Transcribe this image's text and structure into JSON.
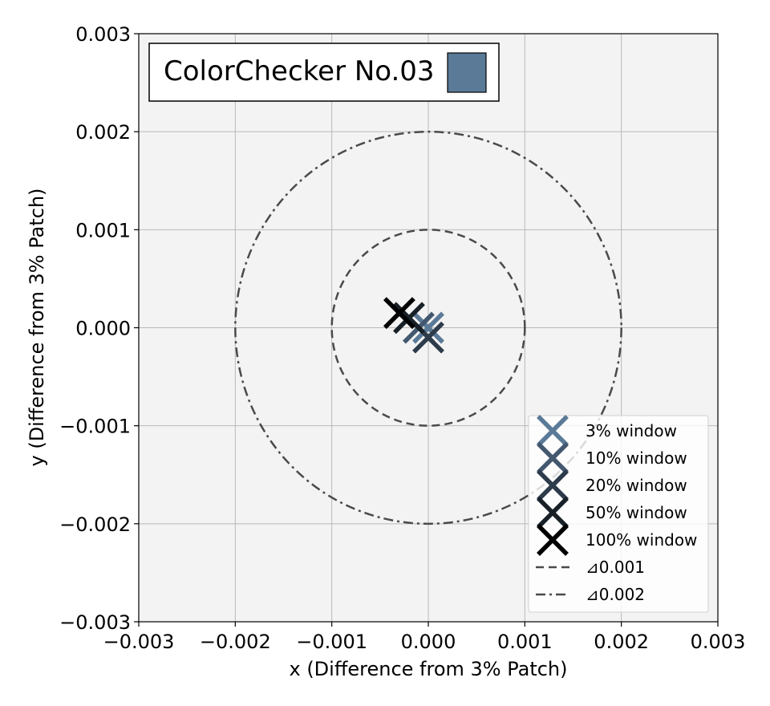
{
  "chart_data": {
    "type": "scatter",
    "title": "ColorChecker No.03",
    "title_swatch_color": "#5b7a98",
    "xlabel": "x (Difference from 3% Patch)",
    "ylabel": "y (Difference from 3% Patch)",
    "xlim": [
      -0.003,
      0.003
    ],
    "ylim": [
      -0.003,
      0.003
    ],
    "xticks": [
      -0.003,
      -0.002,
      -0.001,
      0.0,
      0.001,
      0.002,
      0.003
    ],
    "yticks": [
      -0.003,
      -0.002,
      -0.001,
      0.0,
      0.001,
      0.002,
      0.003
    ],
    "xtick_labels": [
      "−0.003",
      "−0.002",
      "−0.001",
      "0.000",
      "0.001",
      "0.002",
      "0.003"
    ],
    "ytick_labels": [
      "−0.003",
      "−0.002",
      "−0.001",
      "0.000",
      "0.001",
      "0.002",
      "0.003"
    ],
    "grid": true,
    "background": "#f3f3f3",
    "legend_position": "lower right",
    "series": [
      {
        "name": "3% window",
        "x": 0.0,
        "y": 0.0,
        "color": "#5b7a98",
        "marker": "x"
      },
      {
        "name": "10% window",
        "x": -0.0001,
        "y": 0.0,
        "color": "#43586f",
        "marker": "x"
      },
      {
        "name": "20% window",
        "x": 0.0,
        "y": -0.0001,
        "color": "#2d3b4b",
        "marker": "x"
      },
      {
        "name": "50% window",
        "x": -0.0002,
        "y": 0.0001,
        "color": "#182028",
        "marker": "x"
      },
      {
        "name": "100% window",
        "x": -0.0003,
        "y": 0.00015,
        "color": "#000000",
        "marker": "x"
      }
    ],
    "circles": [
      {
        "name": "⊿0.001",
        "radius": 0.001,
        "style": "dashed",
        "color": "#4a4a4a"
      },
      {
        "name": "⊿0.002",
        "radius": 0.002,
        "style": "dashdot",
        "color": "#4a4a4a"
      }
    ]
  }
}
